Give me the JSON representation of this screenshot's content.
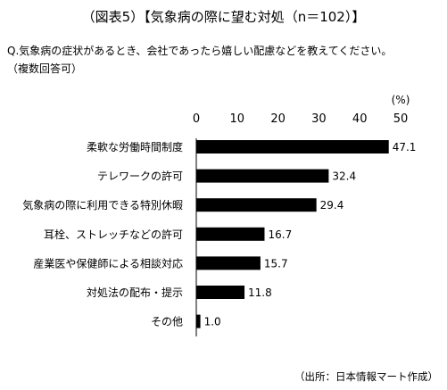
{
  "figure": {
    "title": "（図表5）【気象病の際に望む対処（n＝102）】",
    "question": "Q.気象病の症状があるとき、会社であったら嬉しい配慮などを教えてください。",
    "note": "（複数回答可）",
    "source": "（出所：日本情報マート作成）"
  },
  "chart_data": {
    "type": "bar",
    "orientation": "horizontal",
    "title": "",
    "xlabel": "",
    "ylabel": "",
    "unit": "(%)",
    "xlim": [
      0,
      50
    ],
    "xticks": [
      0,
      10,
      20,
      30,
      40,
      50
    ],
    "grid": false,
    "legend": "none",
    "bar_color": "#000000",
    "categories": [
      "柔軟な労働時間制度",
      "テレワークの許可",
      "気象病の際に利用できる特別休暇",
      "耳栓、ストレッチなどの許可",
      "産業医や保健師による相談対応",
      "対処法の配布・提示",
      "その他"
    ],
    "values": [
      47.1,
      32.4,
      29.4,
      16.7,
      15.7,
      11.8,
      1.0
    ],
    "value_labels": [
      "47.1",
      "32.4",
      "29.4",
      "16.7",
      "15.7",
      "11.8",
      "1.0"
    ]
  }
}
